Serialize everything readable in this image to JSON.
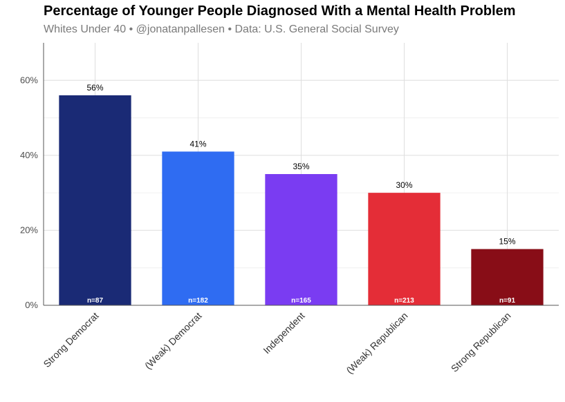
{
  "chart_data": {
    "type": "bar",
    "title": "Percentage of Younger People Diagnosed With a Mental Health Problem",
    "subtitle": "Whites Under 40 • @jonatanpallesen • Data: U.S. General Social Survey",
    "categories": [
      "Strong Democrat",
      "(Weak) Democrat",
      "Independent",
      "(Weak) Republican",
      "Strong Republican"
    ],
    "values": [
      56,
      41,
      35,
      30,
      15
    ],
    "value_labels": [
      "56%",
      "41%",
      "35%",
      "30%",
      "15%"
    ],
    "n_labels": [
      "n=87",
      "n=182",
      "n=165",
      "n=213",
      "n=91"
    ],
    "colors": [
      "#1a2a75",
      "#2f6cf2",
      "#7a3cf2",
      "#e42d37",
      "#880d17"
    ],
    "ylim": [
      0,
      70
    ],
    "yticks": [
      0,
      20,
      40,
      60
    ],
    "ytick_labels": [
      "0%",
      "20%",
      "40%",
      "60%"
    ],
    "grid": true,
    "xlabel": "",
    "ylabel": ""
  }
}
